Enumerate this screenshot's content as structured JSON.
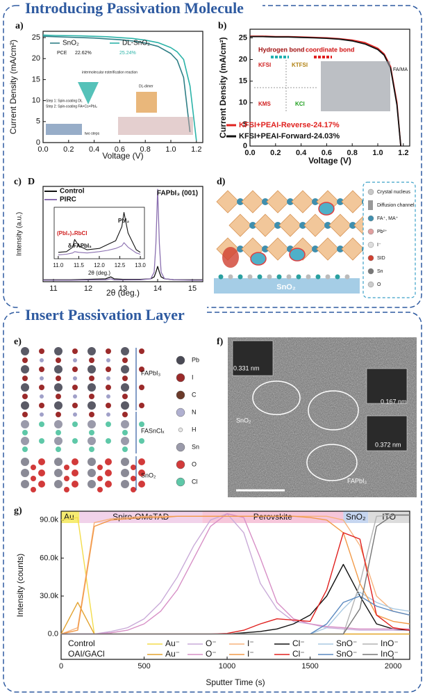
{
  "sections": [
    {
      "title": "Introducing Passivation Molecule"
    },
    {
      "title": "Insert Passivation Layer"
    }
  ],
  "panel_labels": {
    "a": "a)",
    "b": "b)",
    "c": "c)",
    "c_extra": "D",
    "d": "d)",
    "e": "e)",
    "f": "f)",
    "g": "g)"
  },
  "chart_data": [
    {
      "type": "line",
      "x_label": "Voltage (V)",
      "y_label": "Current Density (mA/cm²)",
      "x": [
        0,
        0.1,
        0.2,
        0.3,
        0.4,
        0.5,
        0.6,
        0.7,
        0.8,
        0.9,
        1.0,
        1.05,
        1.1,
        1.15,
        1.2
      ],
      "series": [
        {
          "name": "SnO₂",
          "color": "#2f7f86",
          "values": [
            25.3,
            25.2,
            25.1,
            25.0,
            24.9,
            24.7,
            24.5,
            24.2,
            23.7,
            22.9,
            21.2,
            19.6,
            15.5,
            2.5,
            null
          ]
        },
        {
          "name": "DL-SnO₂",
          "color": "#2bb3a8",
          "values": [
            25.6,
            25.5,
            25.45,
            25.4,
            25.3,
            25.2,
            25.0,
            24.8,
            24.4,
            23.8,
            22.6,
            21.6,
            19.8,
            13.5,
            0.5
          ]
        }
      ],
      "xlim": [
        0,
        1.25
      ],
      "ylim": [
        0,
        26.5
      ],
      "xticks": [
        {
          "value": 0,
          "label": "0.0"
        },
        0.2,
        0.4,
        0.6,
        0.8,
        {
          "value": 1,
          "label": "1.0"
        },
        1.2
      ],
      "yticks": [
        0,
        5,
        10,
        15,
        20,
        25
      ],
      "annotations": [
        "PCE",
        "22.62%",
        "25.24%",
        "Step 1: Spin-coating  DL",
        "Step 2: Spin-coating FA+Cs+PbI₂",
        "intermolecular esterification reaction",
        "DL-dimer",
        "two steps"
      ]
    },
    {
      "type": "line",
      "x_label": "Voltage (V)",
      "y_label": "Current Density (mA/cm²)",
      "x": [
        0,
        0.1,
        0.2,
        0.3,
        0.4,
        0.5,
        0.6,
        0.7,
        0.8,
        0.9,
        1.0,
        1.05,
        1.1,
        1.15,
        1.18
      ],
      "series": [
        {
          "name": "KFSI+PEAI-Reverse-24.17%",
          "color": "#e0221f",
          "values": [
            25.4,
            25.4,
            25.3,
            25.3,
            25.2,
            25.1,
            25.0,
            24.8,
            24.5,
            23.9,
            22.6,
            21.3,
            18.4,
            10,
            0
          ]
        },
        {
          "name": "KFSI+PEAI-Forward-24.03%",
          "color": "#111111",
          "values": [
            25.3,
            25.3,
            25.2,
            25.2,
            25.1,
            25.0,
            24.9,
            24.7,
            24.3,
            23.6,
            22.3,
            21.0,
            18.0,
            9.5,
            0
          ]
        }
      ],
      "xlim": [
        0,
        1.25
      ],
      "ylim": [
        0,
        27
      ],
      "xticks": [
        {
          "value": 0,
          "label": "0.0"
        },
        0.2,
        0.4,
        0.6,
        0.8,
        {
          "value": 1,
          "label": "1.0"
        },
        1.2
      ],
      "yticks": [
        0,
        5,
        10,
        15,
        20,
        25
      ],
      "annotations": [
        "Hydrogen bond",
        "coordinate bond",
        "KFSI",
        "KTFSI",
        "KMS",
        "KCl",
        "FA/MA"
      ]
    },
    {
      "type": "line",
      "x_label": "2θ (deg.)",
      "y_label": "Intensity (a.u.)",
      "x": [
        10.7,
        11.0,
        11.5,
        12.0,
        12.5,
        12.65,
        12.75,
        13.0,
        13.5,
        13.8,
        13.9,
        13.95,
        14.0,
        14.05,
        14.1,
        14.2,
        14.5,
        15.0,
        15.3
      ],
      "series": [
        {
          "name": "Control",
          "color": "#111111",
          "values": [
            2,
            2,
            2,
            2.5,
            3,
            5,
            3,
            2.5,
            2.5,
            3,
            5,
            10,
            16,
            10,
            5,
            3,
            2,
            2,
            2
          ]
        },
        {
          "name": "PIRC",
          "color": "#8a6fb0",
          "values": [
            1.5,
            1.5,
            1.5,
            1.8,
            2,
            3,
            2,
            1.8,
            2,
            3,
            10,
            40,
            97,
            40,
            10,
            3,
            2,
            1.5,
            1.5
          ]
        }
      ],
      "xlim": [
        10.7,
        15.3
      ],
      "ylim": [
        0,
        100
      ],
      "xticks": [
        11,
        12,
        13,
        14,
        15
      ],
      "annotations": [
        "FAPbI₃ (001)"
      ]
    },
    {
      "type": "line",
      "x_label": "2θ (deg.)",
      "x": [
        11.0,
        11.2,
        11.35,
        11.4,
        11.5,
        11.7,
        12.0,
        12.2,
        12.4,
        12.55,
        12.6,
        12.7,
        12.9,
        13.0
      ],
      "series": [
        {
          "name": "Control",
          "color": "#111111",
          "values": [
            10,
            11,
            18,
            30,
            20,
            14,
            16,
            22,
            28,
            50,
            72,
            40,
            14,
            10
          ]
        },
        {
          "name": "PIRC",
          "color": "#8a6fb0",
          "values": [
            6,
            7,
            9,
            11,
            10,
            9,
            11,
            13,
            16,
            20,
            25,
            18,
            9,
            7
          ]
        }
      ],
      "xlim": [
        10.9,
        13.1
      ],
      "ylim": [
        0,
        80
      ],
      "xticks": [
        {
          "value": 11,
          "label": "11.0"
        },
        11.5,
        {
          "value": 12,
          "label": "12.0"
        },
        12.5,
        {
          "value": 13,
          "label": "13.0"
        }
      ],
      "annotations": [
        "PbI₂",
        "(PbI₂)₂RbCl",
        "δ-FAPbI₃"
      ]
    },
    {
      "type": "line",
      "x_label": "Sputter Time (s)",
      "y_label": "Intensity (counts)",
      "x": [
        0,
        100,
        200,
        300,
        400,
        500,
        600,
        700,
        800,
        900,
        1000,
        1100,
        1200,
        1300,
        1400,
        1500,
        1600,
        1700,
        1800,
        1900,
        2000,
        2100
      ],
      "xlim": [
        0,
        2100
      ],
      "ylim": [
        -20000,
        97000
      ],
      "xticks": [
        0,
        500,
        1000,
        1500,
        2000
      ],
      "yticks": [
        {
          "value": 0,
          "label": "0.0"
        },
        {
          "value": 30000,
          "label": "30.0k"
        },
        {
          "value": 60000,
          "label": "60.0k"
        },
        {
          "value": 90000,
          "label": "90.0k"
        }
      ],
      "regions": [
        {
          "label": "Au",
          "range": [
            0,
            110
          ],
          "color": "#f6ec72"
        },
        {
          "label": "Spiro-OMeTAD",
          "range": [
            110,
            850
          ],
          "color": "#f1d2ea"
        },
        {
          "label": "Perovskite",
          "range": [
            850,
            1700
          ],
          "color": "#f6c6da"
        },
        {
          "label": "SnO₂",
          "range": [
            1700,
            1850
          ],
          "color": "#c6d6f0"
        },
        {
          "label": "ITO",
          "range": [
            1850,
            2100
          ],
          "color": "#dcdcdc"
        }
      ],
      "series_groups": [
        {
          "name": "Control",
          "series": [
            {
              "name": "Au⁻",
              "color": "#f3dc4a",
              "values": [
                90000,
                92000,
                0,
                0,
                0,
                0,
                0,
                0,
                0,
                0,
                0,
                0,
                0,
                0,
                0,
                0,
                0,
                0,
                0,
                0,
                0,
                0
              ]
            },
            {
              "name": "O⁻",
              "color": "#c9aad8",
              "values": [
                0,
                0,
                0,
                2000,
                5000,
                12000,
                25000,
                45000,
                70000,
                90000,
                95000,
                80000,
                40000,
                20000,
                10000,
                8000,
                5000,
                4000,
                3000,
                3000,
                3000,
                3000
              ]
            },
            {
              "name": "I⁻",
              "color": "#f7b27c",
              "values": [
                0,
                5000,
                88000,
                91000,
                92000,
                93000,
                93000,
                93000,
                93000,
                93000,
                93000,
                93000,
                93000,
                93000,
                93000,
                93000,
                93000,
                90000,
                70000,
                30000,
                18000,
                15000
              ]
            },
            {
              "name": "Cl⁻",
              "color": "#111111",
              "values": [
                0,
                0,
                0,
                0,
                0,
                0,
                0,
                0,
                0,
                0,
                0,
                1000,
                2000,
                4000,
                8000,
                15000,
                30000,
                55000,
                30000,
                8000,
                4000,
                3000
              ]
            },
            {
              "name": "SnO⁻",
              "color": "#a9c9e2",
              "values": [
                0,
                0,
                0,
                0,
                0,
                0,
                0,
                0,
                0,
                0,
                0,
                0,
                0,
                0,
                0,
                0,
                5000,
                20000,
                33000,
                25000,
                20000,
                18000
              ]
            },
            {
              "name": "InO⁻",
              "color": "#b3b3b3",
              "values": [
                0,
                0,
                0,
                0,
                0,
                0,
                0,
                0,
                0,
                0,
                0,
                0,
                0,
                0,
                0,
                0,
                0,
                0,
                40000,
                93000,
                94000,
                94000
              ]
            }
          ]
        },
        {
          "name": "OAI/GACl",
          "series": [
            {
              "name": "Au⁻",
              "color": "#e3a22e",
              "values": [
                0,
                25000,
                0,
                0,
                0,
                0,
                0,
                0,
                0,
                0,
                0,
                0,
                0,
                0,
                0,
                0,
                0,
                0,
                0,
                0,
                0,
                0
              ]
            },
            {
              "name": "O⁻",
              "color": "#d78fc6",
              "values": [
                0,
                0,
                0,
                1000,
                3000,
                8000,
                18000,
                35000,
                60000,
                85000,
                95000,
                92000,
                60000,
                25000,
                12000,
                8000,
                6000,
                5000,
                4000,
                4000,
                4000,
                4000
              ]
            },
            {
              "name": "I⁻",
              "color": "#f29a48",
              "values": [
                0,
                3000,
                85000,
                90000,
                91000,
                92000,
                92000,
                93000,
                93000,
                93000,
                93000,
                93000,
                93000,
                93000,
                93000,
                92000,
                90000,
                80000,
                40000,
                15000,
                10000,
                8000
              ]
            },
            {
              "name": "Cl⁻",
              "color": "#e0201e",
              "values": [
                0,
                0,
                0,
                0,
                0,
                0,
                0,
                0,
                0,
                0,
                500,
                3000,
                8000,
                12000,
                11000,
                10000,
                35000,
                80000,
                75000,
                15000,
                5000,
                3000
              ]
            },
            {
              "name": "SnO⁻",
              "color": "#5a89c0",
              "values": [
                0,
                0,
                0,
                0,
                0,
                0,
                0,
                0,
                0,
                0,
                0,
                0,
                0,
                0,
                0,
                0,
                8000,
                25000,
                30000,
                22000,
                18000,
                15000
              ]
            },
            {
              "name": "InO⁻",
              "color": "#777777",
              "values": [
                0,
                0,
                0,
                0,
                0,
                0,
                0,
                0,
                0,
                0,
                0,
                0,
                0,
                0,
                0,
                0,
                0,
                0,
                20000,
                85000,
                94000,
                94000
              ]
            }
          ]
        }
      ]
    }
  ],
  "diagram_d": {
    "substrate": "SnO₂",
    "legend": [
      "Crystal nucleus",
      "Diffusion channel",
      "FA⁺, MA⁺",
      "Pb²⁺",
      "I⁻",
      "SID",
      "Sn",
      "O"
    ]
  },
  "diagram_e": {
    "legend": [
      "Pb",
      "I",
      "C",
      "N",
      "H",
      "Sn",
      "O",
      "Cl"
    ],
    "layers": [
      "FAPbI₃",
      "FASnClₓ",
      "SnO₂"
    ]
  },
  "image_f": {
    "labels": [
      "0.331 nm",
      "0.167 nm",
      "0.372 nm",
      "SnO₂",
      "FAPbI₃"
    ]
  }
}
